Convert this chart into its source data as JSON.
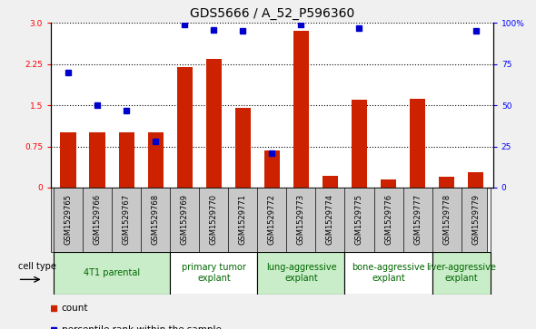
{
  "title": "GDS5666 / A_52_P596360",
  "samples": [
    "GSM1529765",
    "GSM1529766",
    "GSM1529767",
    "GSM1529768",
    "GSM1529769",
    "GSM1529770",
    "GSM1529771",
    "GSM1529772",
    "GSM1529773",
    "GSM1529774",
    "GSM1529775",
    "GSM1529776",
    "GSM1529777",
    "GSM1529778",
    "GSM1529779"
  ],
  "counts": [
    1.0,
    1.0,
    1.0,
    1.0,
    2.2,
    2.35,
    1.45,
    0.68,
    2.85,
    0.22,
    1.6,
    0.15,
    1.62,
    0.2,
    0.28
  ],
  "percentile_scaled": [
    70,
    50,
    47,
    28,
    99,
    96,
    95,
    21,
    99,
    null,
    97,
    null,
    null,
    null,
    95
  ],
  "cell_groups": [
    {
      "label": "4T1 parental",
      "start": 0,
      "end": 4,
      "color": "#c8edc8"
    },
    {
      "label": "primary tumor\nexplant",
      "start": 4,
      "end": 7,
      "color": "#ffffff"
    },
    {
      "label": "lung-aggressive\nexplant",
      "start": 7,
      "end": 10,
      "color": "#c8edc8"
    },
    {
      "label": "bone-aggressive\nexplant",
      "start": 10,
      "end": 13,
      "color": "#ffffff"
    },
    {
      "label": "liver-aggressive\nexplant",
      "start": 13,
      "end": 15,
      "color": "#c8edc8"
    }
  ],
  "ylim_left": [
    0,
    3
  ],
  "ylim_right": [
    0,
    100
  ],
  "yticks_left": [
    0,
    0.75,
    1.5,
    2.25,
    3.0
  ],
  "yticks_right": [
    0,
    25,
    50,
    75,
    100
  ],
  "ytick_labels_right": [
    "0",
    "25",
    "50",
    "75",
    "100%"
  ],
  "bar_color": "#cc2200",
  "dot_color": "#0000cc",
  "fig_bg": "#f0f0f0",
  "plot_bg": "#ffffff",
  "sample_row_bg": "#c8c8c8",
  "title_fontsize": 10,
  "label_fontsize": 7,
  "tick_fontsize": 6.5,
  "legend_fontsize": 7.5
}
